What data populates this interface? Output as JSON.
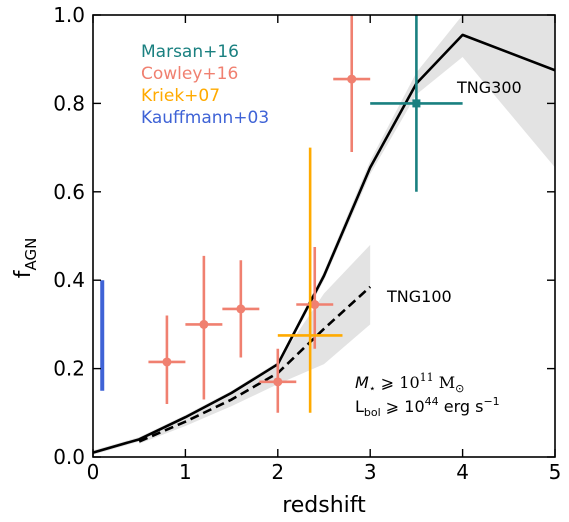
{
  "chart_data": {
    "type": "line",
    "title": "",
    "xlabel": "redshift",
    "ylabel": {
      "main": "f",
      "sub": "AGN"
    },
    "xlim": [
      0,
      5
    ],
    "ylim": [
      0,
      1.0
    ],
    "xticks": [
      0,
      1,
      2,
      3,
      4,
      5
    ],
    "yticks": [
      0.0,
      0.2,
      0.4,
      0.6,
      0.8,
      1.0
    ],
    "xtick_labels": [
      "0",
      "1",
      "2",
      "3",
      "4",
      "5"
    ],
    "ytick_labels": [
      "0.0",
      "0.2",
      "0.4",
      "0.6",
      "0.8",
      "1.0"
    ],
    "grid": false,
    "legend_position": "top-left",
    "series": [
      {
        "name": "TNG300",
        "style": "solid",
        "color": "#000000",
        "x": [
          0,
          0.5,
          1.0,
          1.5,
          2.0,
          2.5,
          3.0,
          3.5,
          4.0,
          5.0
        ],
        "y": [
          0.01,
          0.04,
          0.09,
          0.145,
          0.21,
          0.41,
          0.655,
          0.845,
          0.955,
          0.875
        ],
        "band_lower": [
          0.005,
          0.035,
          0.085,
          0.14,
          0.205,
          0.4,
          0.64,
          0.82,
          0.905,
          0.655
        ],
        "band_upper": [
          0.015,
          0.045,
          0.095,
          0.15,
          0.215,
          0.42,
          0.67,
          0.87,
          1.0,
          1.0
        ]
      },
      {
        "name": "TNG100",
        "style": "dashed",
        "color": "#000000",
        "x": [
          0.5,
          1.0,
          1.5,
          2.0,
          2.5,
          3.0
        ],
        "y": [
          0.035,
          0.08,
          0.13,
          0.19,
          0.29,
          0.385
        ],
        "band_lower": [
          0.03,
          0.07,
          0.115,
          0.165,
          0.21,
          0.3
        ],
        "band_upper": [
          0.04,
          0.09,
          0.145,
          0.215,
          0.37,
          0.48
        ]
      }
    ],
    "observations": [
      {
        "name": "Marsan+16",
        "color": "#1a8080",
        "points": [
          {
            "x": 3.5,
            "y": 0.8,
            "xerr": [
              0.5,
              0.5
            ],
            "yerr": [
              0.2,
              0.2
            ]
          }
        ]
      },
      {
        "name": "Cowley+16",
        "color": "#f08070",
        "points": [
          {
            "x": 0.8,
            "y": 0.215,
            "xerr": [
              0.2,
              0.2
            ],
            "yerr": [
              0.095,
              0.105
            ]
          },
          {
            "x": 1.2,
            "y": 0.3,
            "xerr": [
              0.2,
              0.2
            ],
            "yerr": [
              0.17,
              0.155
            ]
          },
          {
            "x": 1.6,
            "y": 0.335,
            "xerr": [
              0.2,
              0.2
            ],
            "yerr": [
              0.11,
              0.11
            ]
          },
          {
            "x": 2.0,
            "y": 0.17,
            "xerr": [
              0.2,
              0.2
            ],
            "yerr": [
              0.07,
              0.075
            ]
          },
          {
            "x": 2.4,
            "y": 0.345,
            "xerr": [
              0.2,
              0.2
            ],
            "yerr": [
              0.1,
              0.13
            ]
          },
          {
            "x": 2.8,
            "y": 0.855,
            "xerr": [
              0.2,
              0.2
            ],
            "yerr": [
              0.165,
              0.145
            ]
          }
        ]
      },
      {
        "name": "Kriek+07",
        "color": "#ffaa00",
        "points": [
          {
            "x": 2.35,
            "y": 0.275,
            "xerr": [
              0.35,
              0.35
            ],
            "yerr": [
              0.175,
              0.425
            ]
          }
        ]
      },
      {
        "name": "Kauffmann+03",
        "color": "#3f63d6",
        "points": [
          {
            "x": 0.1,
            "y": 0.275,
            "xerr": [
              0,
              0
            ],
            "yerr": [
              0.125,
              0.125
            ]
          }
        ]
      }
    ],
    "line_labels": [
      {
        "text": "TNG300",
        "series": "TNG300"
      },
      {
        "text": "TNG100",
        "series": "TNG100"
      }
    ],
    "annotations": {
      "mass_prefix": "M",
      "mass_sub": "⋆",
      "mass_op": " ⩾ ",
      "mass_base": "10",
      "mass_exp": "11",
      "mass_unit": " M",
      "mass_unit_sub": "⊙",
      "lum_prefix": "L",
      "lum_sub": "bol",
      "lum_op": " ⩾ ",
      "lum_base": "10",
      "lum_exp": "44",
      "lum_unit": " erg s",
      "lum_unit_exp": "−1"
    },
    "colors": {
      "band": "#e3e3e3",
      "axis": "#000000"
    }
  }
}
